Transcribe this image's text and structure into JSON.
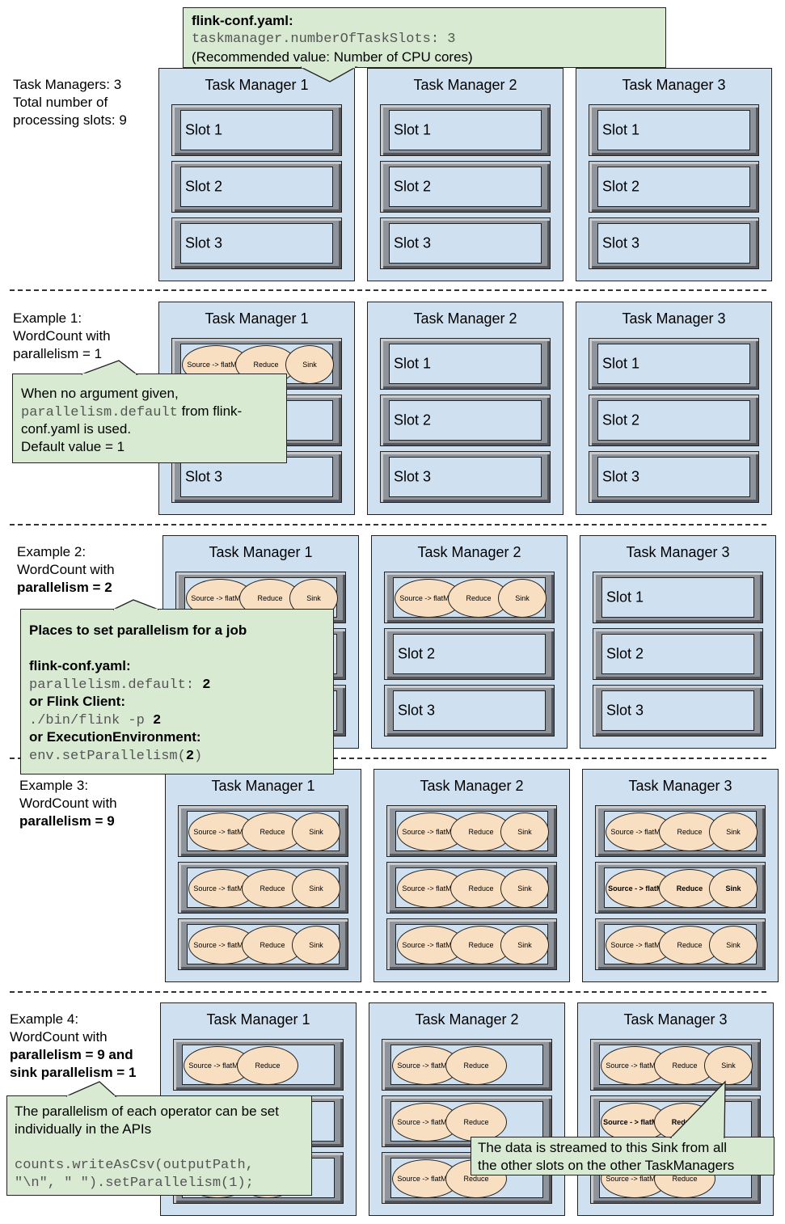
{
  "top_callout": {
    "title": "flink-conf.yaml:",
    "code": "taskmanager.numberOfTaskSlots: 3",
    "note": "(Recommended value: Number of CPU cores)"
  },
  "section0": {
    "line1": "Task Managers: 3",
    "line2": "Total number of",
    "line3": "processing slots: 9"
  },
  "section1": {
    "line1": "Example 1:",
    "line2": "WordCount with",
    "line3": "parallelism = 1"
  },
  "section2": {
    "line1": "Example 2:",
    "line2": "WordCount with",
    "line3": "parallelism = 2"
  },
  "section3": {
    "line1": "Example 3:",
    "line2": "WordCount with",
    "line3": "parallelism = 9"
  },
  "section4": {
    "line1": "Example 4:",
    "line2": "WordCount with",
    "line3": "parallelism = 9 and",
    "line4": "sink parallelism = 1"
  },
  "tm_titles": [
    "Task Manager 1",
    "Task Manager 2",
    "Task Manager 3"
  ],
  "slot_labels": [
    "Slot 1",
    "Slot 2",
    "Slot 3"
  ],
  "operators": {
    "source": "Source -> flatMap",
    "source_bold": "Source - > flatMap",
    "reduce": "Reduce",
    "sink": "Sink"
  },
  "callout1": {
    "line1": "When no argument given,",
    "code": "parallelism.default",
    "line2_rest": " from flink-",
    "line3": "conf.yaml is used.",
    "line4": "Default value = 1"
  },
  "callout2": {
    "title": "Places to set parallelism for a job",
    "h1": "flink-conf.yaml:",
    "code1": "parallelism.default: ",
    "val1": "2",
    "h2": "or Flink Client:",
    "code2": "./bin/flink -p ",
    "val2": "2",
    "h3": "or ExecutionEnvironment:",
    "code3a": "env.setParallelism(",
    "val3": "2",
    "code3b": ")"
  },
  "callout3": {
    "line1": "The parallelism of each operator can be set",
    "line2": "individually in the APIs",
    "code1": "counts.writeAsCsv(outputPath,",
    "code2": "\"\\n\", \" \").setParallelism(1);"
  },
  "callout4": {
    "line1": "The data is streamed to this Sink from all",
    "line2": "the other slots on the other TaskManagers"
  }
}
